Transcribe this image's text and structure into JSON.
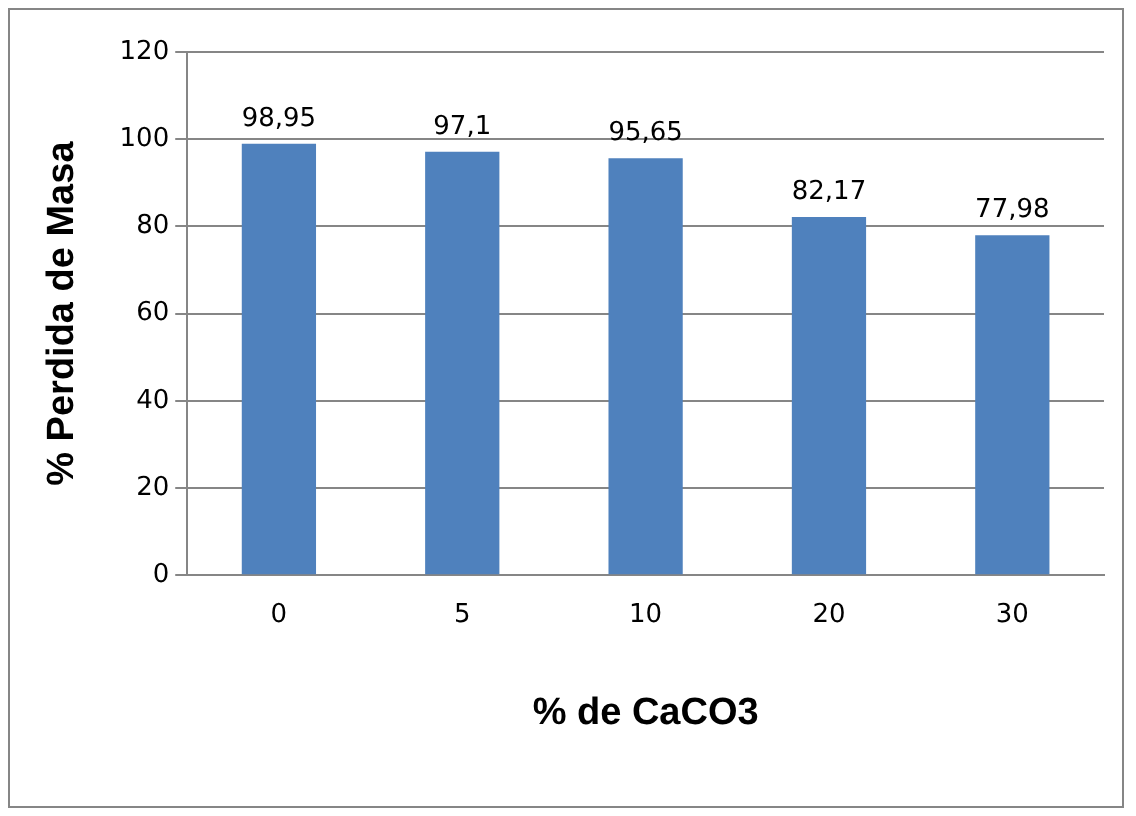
{
  "chart_data": {
    "type": "bar",
    "xlabel": "% de CaCO3",
    "ylabel": "% Perdida de Masa",
    "categories": [
      "0",
      "5",
      "10",
      "20",
      "30"
    ],
    "values": [
      98.95,
      97.1,
      95.65,
      82.17,
      77.98
    ],
    "value_labels": [
      "98,95",
      "97,1",
      "95,65",
      "82,17",
      "77,98"
    ],
    "color": "#4f81bd",
    "ylim": [
      0,
      120
    ],
    "yticks": [
      0,
      20,
      40,
      60,
      80,
      100,
      120
    ],
    "grid": "y",
    "legend": false
  }
}
